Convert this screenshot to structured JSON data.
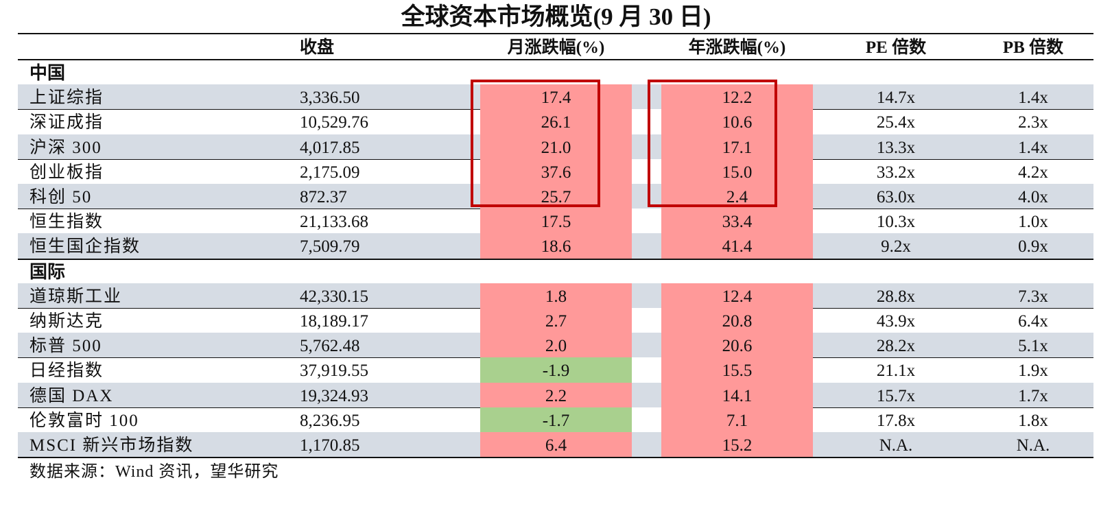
{
  "title": "全球资本市场概览(9 月 30 日)",
  "headers": {
    "close": "收盘",
    "monthly": "月涨跌幅(%)",
    "yearly": "年涨跌幅(%)",
    "pe": "PE 倍数",
    "pb": "PB 倍数"
  },
  "sections": [
    {
      "label": "中国",
      "rows": [
        {
          "name": "上证综指",
          "close": "3,336.50",
          "monthly": "17.4",
          "yearly": "12.2",
          "pe": "14.7x",
          "pb": "1.4x",
          "monthly_color": "red",
          "yearly_color": "red"
        },
        {
          "name": "深证成指",
          "close": "10,529.76",
          "monthly": "26.1",
          "yearly": "10.6",
          "pe": "25.4x",
          "pb": "2.3x",
          "monthly_color": "red",
          "yearly_color": "red"
        },
        {
          "name": "沪深 300",
          "close": "4,017.85",
          "monthly": "21.0",
          "yearly": "17.1",
          "pe": "13.3x",
          "pb": "1.4x",
          "monthly_color": "red",
          "yearly_color": "red"
        },
        {
          "name": "创业板指",
          "close": "2,175.09",
          "monthly": "37.6",
          "yearly": "15.0",
          "pe": "33.2x",
          "pb": "4.2x",
          "monthly_color": "red",
          "yearly_color": "red"
        },
        {
          "name": "科创 50",
          "close": "872.37",
          "monthly": "25.7",
          "yearly": "2.4",
          "pe": "63.0x",
          "pb": "4.0x",
          "monthly_color": "red",
          "yearly_color": "red"
        },
        {
          "name": "恒生指数",
          "close": "21,133.68",
          "monthly": "17.5",
          "yearly": "33.4",
          "pe": "10.3x",
          "pb": "1.0x",
          "monthly_color": "red",
          "yearly_color": "red"
        },
        {
          "name": "恒生国企指数",
          "close": "7,509.79",
          "monthly": "18.6",
          "yearly": "41.4",
          "pe": "9.2x",
          "pb": "0.9x",
          "monthly_color": "red",
          "yearly_color": "red"
        }
      ]
    },
    {
      "label": "国际",
      "rows": [
        {
          "name": "道琼斯工业",
          "close": "42,330.15",
          "monthly": "1.8",
          "yearly": "12.4",
          "pe": "28.8x",
          "pb": "7.3x",
          "monthly_color": "red",
          "yearly_color": "red"
        },
        {
          "name": "纳斯达克",
          "close": "18,189.17",
          "monthly": "2.7",
          "yearly": "20.8",
          "pe": "43.9x",
          "pb": "6.4x",
          "monthly_color": "red",
          "yearly_color": "red"
        },
        {
          "name": "标普 500",
          "close": "5,762.48",
          "monthly": "2.0",
          "yearly": "20.6",
          "pe": "28.2x",
          "pb": "5.1x",
          "monthly_color": "red",
          "yearly_color": "red"
        },
        {
          "name": "日经指数",
          "close": "37,919.55",
          "monthly": "-1.9",
          "yearly": "15.5",
          "pe": "21.1x",
          "pb": "1.9x",
          "monthly_color": "green",
          "yearly_color": "red"
        },
        {
          "name": "德国 DAX",
          "close": "19,324.93",
          "monthly": "2.2",
          "yearly": "14.1",
          "pe": "15.7x",
          "pb": "1.7x",
          "monthly_color": "red",
          "yearly_color": "red"
        },
        {
          "name": "伦敦富时 100",
          "close": "8,236.95",
          "monthly": "-1.7",
          "yearly": "7.1",
          "pe": "17.8x",
          "pb": "1.8x",
          "monthly_color": "green",
          "yearly_color": "red"
        },
        {
          "name": "MSCI 新兴市场指数",
          "close": "1,170.85",
          "monthly": "6.4",
          "yearly": "15.2",
          "pe": "N.A.",
          "pb": "N.A.",
          "monthly_color": "red",
          "yearly_color": "red"
        }
      ]
    }
  ],
  "source": "数据来源：Wind 资讯，望华研究",
  "colors": {
    "positive": "#ff9999",
    "negative": "#a9d08e",
    "row_shade": "#d6dce4",
    "highlight_box": "#c00000"
  }
}
